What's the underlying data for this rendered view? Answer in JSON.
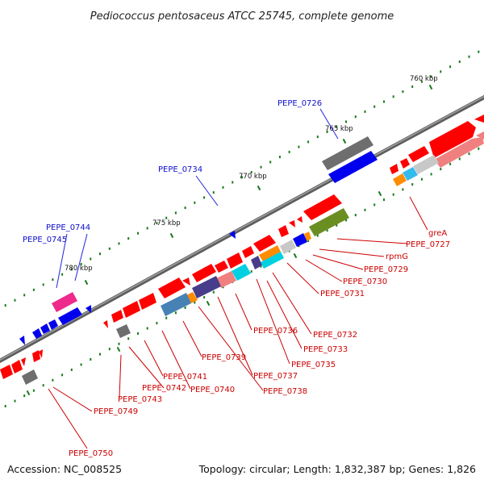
{
  "title": "Pediococcus pentosaceus ATCC 25745, complete genome",
  "footer": {
    "accession": "Accession: NC_008525",
    "summary": "Topology: circular; Length: 1,832,387 bp; Genes: 1,826"
  },
  "scale_labels": [
    "760 kbp",
    "765 kbp",
    "770 kbp",
    "775 kbp",
    "780 kbp"
  ],
  "gene_labels_outer": [
    "PEPE_0726",
    "PEPE_0734",
    "PEPE_0744",
    "PEPE_0745"
  ],
  "gene_labels_inner": [
    "greA",
    "PEPE_0727",
    "rpmG",
    "PEPE_0729",
    "PEPE_0730",
    "PEPE_0731",
    "PEPE_0732",
    "PEPE_0733",
    "PEPE_0735",
    "PEPE_0736",
    "PEPE_0737",
    "PEPE_0738",
    "PEPE_0739",
    "PEPE_0740",
    "PEPE_0741",
    "PEPE_0742",
    "PEPE_0743",
    "PEPE_0749",
    "PEPE_0750"
  ],
  "colors": {
    "backbone": "#7a7a7a",
    "forward_cds": "#ff0000",
    "reverse_cds": "#0000ee",
    "tick_major": "#1a7a1a",
    "label_forward": "#1010cc",
    "label_reverse": "#cc0000",
    "cog_gray": "#6e6e6e",
    "cog_pink": "#ee2a8c",
    "cog_olive": "#6b8e23",
    "cog_orange": "#ff8c00",
    "cog_cyan": "#00d0e0",
    "cog_navy": "#483d8b",
    "cog_steelblue": "#4682b4",
    "cog_salmon": "#f08080",
    "cog_lightgray": "#c8c8c8",
    "cog_skyblue": "#33bbee"
  }
}
